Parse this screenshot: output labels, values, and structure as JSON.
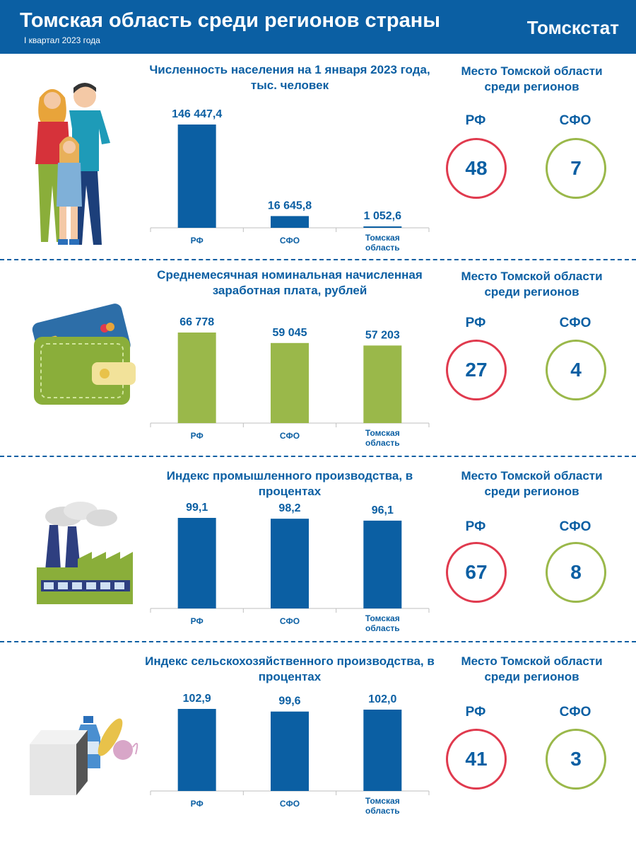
{
  "header": {
    "title": "Томская область среди регионов страны",
    "subtitle": "I квартал 2023 года",
    "org": "Томскстат"
  },
  "colors": {
    "blue": "#0b5fa3",
    "green": "#9ab84a",
    "red": "#e03a4e"
  },
  "sections": [
    {
      "illustration": "family-icon",
      "rank_title": "Место Томской области среди регионов",
      "ranks": [
        {
          "label": "РФ",
          "value": "48"
        },
        {
          "label": "СФО",
          "value": "7"
        }
      ]
    },
    {
      "illustration": "wallet-icon",
      "rank_title": "Место Томской области среди регионов",
      "ranks": [
        {
          "label": "РФ",
          "value": "27"
        },
        {
          "label": "СФО",
          "value": "4"
        }
      ]
    },
    {
      "illustration": "factory-icon",
      "rank_title": "Место Томской области среди регионов",
      "ranks": [
        {
          "label": "РФ",
          "value": "67"
        },
        {
          "label": "СФО",
          "value": "8"
        }
      ]
    },
    {
      "illustration": "groceries-icon",
      "rank_title": "Место Томской области среди регионов",
      "ranks": [
        {
          "label": "РФ",
          "value": "41"
        },
        {
          "label": "СФО",
          "value": "3"
        }
      ]
    }
  ],
  "chart_data": [
    {
      "type": "bar",
      "title": "Численность населения на 1 января 2023 года, тыс. человек",
      "categories": [
        "РФ",
        "СФО",
        "Томская область"
      ],
      "values": [
        146447.4,
        16645.8,
        1052.6
      ],
      "value_labels": [
        "146 447,4",
        "16 645,8",
        "1 052,6"
      ],
      "ylim": [
        0,
        146447.4
      ],
      "color": "#0b5fa3"
    },
    {
      "type": "bar",
      "title": "Среднемесячная номинальная начисленная заработная плата, рублей",
      "categories": [
        "РФ",
        "СФО",
        "Томская область"
      ],
      "values": [
        66778,
        59045,
        57203
      ],
      "value_labels": [
        "66 778",
        "59 045",
        "57 203"
      ],
      "ylim": [
        0,
        66778
      ],
      "color": "#9ab84a"
    },
    {
      "type": "bar",
      "title": "Индекс промышленного производства, в процентах",
      "categories": [
        "РФ",
        "СФО",
        "Томская область"
      ],
      "values": [
        99.1,
        98.2,
        96.1
      ],
      "value_labels": [
        "99,1",
        "98,2",
        "96,1"
      ],
      "ylim": [
        0,
        99.1
      ],
      "color": "#0b5fa3"
    },
    {
      "type": "bar",
      "title": "Индекс сельскохозяйственного производства, в процентах",
      "categories": [
        "РФ",
        "СФО",
        "Томская область"
      ],
      "values": [
        102.9,
        99.6,
        102.0
      ],
      "value_labels": [
        "102,9",
        "99,6",
        "102,0"
      ],
      "ylim": [
        0,
        102.9
      ],
      "color": "#0b5fa3"
    }
  ]
}
